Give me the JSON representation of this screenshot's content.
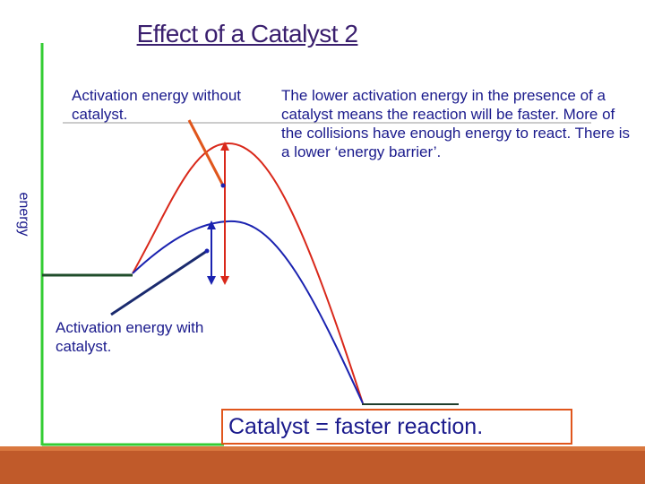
{
  "title": "Effect of a Catalyst 2",
  "axis": {
    "y_label": "energy"
  },
  "labels": {
    "without_catalyst": "Activation energy without catalyst.",
    "with_catalyst": "Activation energy with catalyst."
  },
  "description": "The lower activation energy in the presence of a catalyst means the reaction will be faster. More of the collisions have enough energy to react. There is a lower ‘energy barrier’.",
  "conclusion": "Catalyst = faster reaction.",
  "colors": {
    "uncatalysed_curve": "#d9281a",
    "catalysed_curve": "#1a22b0",
    "axis": "#33cc33",
    "conclusion_border": "#e0561c",
    "footer": "#c05a2a"
  }
}
